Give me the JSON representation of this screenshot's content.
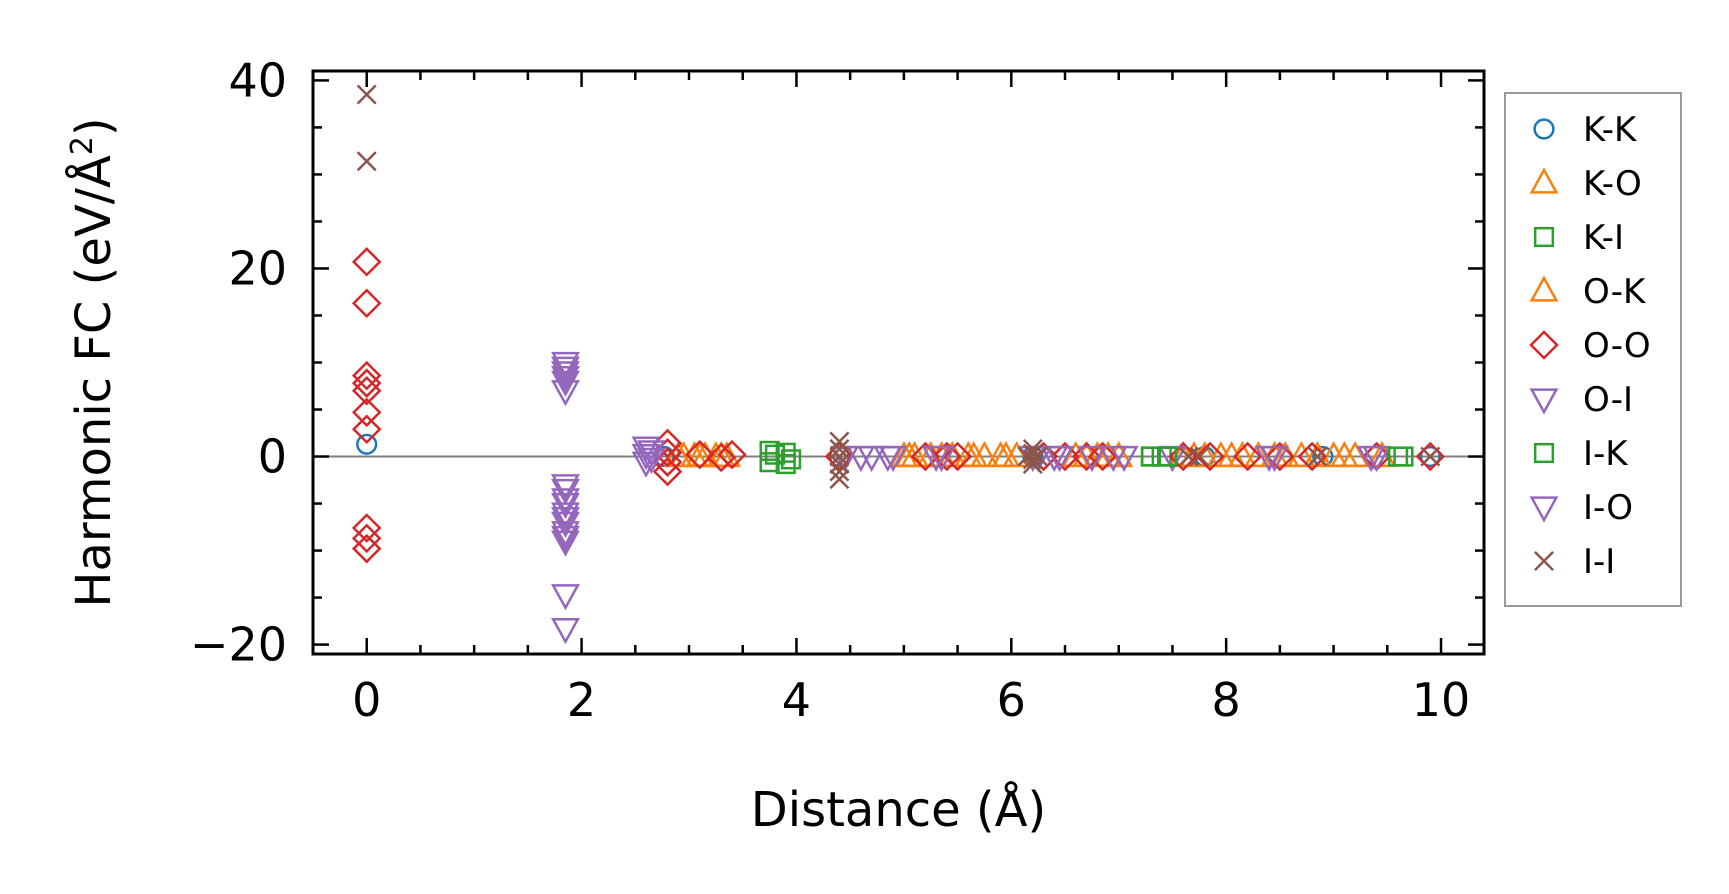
{
  "chart_data": {
    "type": "scatter",
    "title": "",
    "xlabel": "Distance (Å)",
    "ylabel_main": "Harmonic FC (eV/Å",
    "ylabel_sup": "2",
    "ylabel_close": ")",
    "xlim": [
      -0.5,
      10.4
    ],
    "ylim": [
      -21,
      41
    ],
    "xticks": [
      0,
      2,
      4,
      6,
      8,
      10
    ],
    "xtick_labels": [
      "0",
      "2",
      "4",
      "6",
      "8",
      "10"
    ],
    "yticks": [
      -20,
      0,
      20,
      40
    ],
    "ytick_labels": [
      "−20",
      "0",
      "20",
      "40"
    ],
    "zero_line": true,
    "grid": false,
    "legend_position": "outside-right",
    "series": [
      {
        "name": "K-K",
        "marker": "circle",
        "color": "#1f77b4",
        "points": [
          [
            0,
            1.3
          ],
          [
            2.77,
            0
          ],
          [
            4.4,
            0
          ],
          [
            6.2,
            0
          ],
          [
            7.8,
            0
          ],
          [
            8.9,
            0
          ],
          [
            9.9,
            0
          ]
        ]
      },
      {
        "name": "K-O",
        "marker": "triangle-up",
        "color": "#ff7f0e",
        "points": [
          [
            2.95,
            0
          ],
          [
            3.05,
            0
          ],
          [
            3.15,
            0
          ],
          [
            3.25,
            0
          ],
          [
            3.35,
            0
          ],
          [
            5.0,
            0
          ],
          [
            5.1,
            0
          ],
          [
            5.25,
            0
          ],
          [
            5.45,
            0
          ],
          [
            5.6,
            0
          ],
          [
            5.75,
            0
          ],
          [
            5.9,
            0
          ],
          [
            6.05,
            0
          ],
          [
            6.6,
            0
          ],
          [
            6.8,
            0
          ],
          [
            7.0,
            0
          ],
          [
            7.6,
            0
          ],
          [
            7.8,
            0
          ],
          [
            7.95,
            0
          ],
          [
            8.15,
            0
          ],
          [
            8.3,
            0
          ],
          [
            8.55,
            0
          ],
          [
            8.7,
            0
          ],
          [
            8.85,
            0
          ],
          [
            9.0,
            0
          ],
          [
            9.2,
            0
          ],
          [
            9.45,
            0
          ]
        ]
      },
      {
        "name": "K-I",
        "marker": "square",
        "color": "#2ca02c",
        "points": [
          [
            3.75,
            0.6
          ],
          [
            3.75,
            -0.6
          ],
          [
            3.9,
            0.4
          ],
          [
            3.9,
            -0.8
          ],
          [
            7.3,
            0
          ],
          [
            7.4,
            0
          ],
          [
            9.65,
            0
          ]
        ]
      },
      {
        "name": "O-K",
        "marker": "triangle-up",
        "color": "#ff7f0e",
        "points": [
          [
            2.9,
            0
          ],
          [
            3.1,
            0
          ],
          [
            3.3,
            0
          ],
          [
            5.05,
            0
          ],
          [
            5.35,
            0
          ],
          [
            5.65,
            0
          ],
          [
            5.95,
            0
          ],
          [
            6.7,
            0
          ],
          [
            6.9,
            0
          ],
          [
            7.7,
            0
          ],
          [
            8.05,
            0
          ],
          [
            8.45,
            0
          ],
          [
            9.1,
            0
          ]
        ]
      },
      {
        "name": "O-O",
        "marker": "diamond",
        "color": "#d62728",
        "points": [
          [
            0,
            20.7
          ],
          [
            0,
            16.3
          ],
          [
            0,
            8.6
          ],
          [
            0,
            7.8
          ],
          [
            0,
            7.0
          ],
          [
            0,
            4.7
          ],
          [
            0,
            2.9
          ],
          [
            0,
            -7.6
          ],
          [
            0,
            -8.7
          ],
          [
            0,
            -9.8
          ],
          [
            2.8,
            1.4
          ],
          [
            2.8,
            0.4
          ],
          [
            2.8,
            -0.6
          ],
          [
            2.8,
            -1.6
          ],
          [
            3.1,
            0.2
          ],
          [
            3.3,
            -0.1
          ],
          [
            3.4,
            0.2
          ],
          [
            4.4,
            0
          ],
          [
            5.2,
            0
          ],
          [
            5.4,
            0
          ],
          [
            5.5,
            0
          ],
          [
            6.3,
            0
          ],
          [
            6.5,
            0
          ],
          [
            6.7,
            0
          ],
          [
            6.85,
            0
          ],
          [
            7.6,
            0
          ],
          [
            7.85,
            0
          ],
          [
            8.2,
            0
          ],
          [
            8.5,
            0
          ],
          [
            8.8,
            0
          ],
          [
            9.4,
            0
          ],
          [
            9.9,
            0
          ]
        ]
      },
      {
        "name": "O-I",
        "marker": "triangle-down",
        "color": "#9467bd",
        "points": [
          [
            1.85,
            10.0
          ],
          [
            1.85,
            9.0
          ],
          [
            1.85,
            8.0
          ],
          [
            1.85,
            7.0
          ],
          [
            1.85,
            -3.0
          ],
          [
            1.85,
            -4.5
          ],
          [
            1.85,
            -6.0
          ],
          [
            1.85,
            -7.0
          ],
          [
            1.85,
            -8.0
          ],
          [
            1.85,
            -9.0
          ],
          [
            1.85,
            -14.7
          ],
          [
            1.85,
            -18.3
          ],
          [
            2.6,
            1.0
          ],
          [
            2.6,
            0.2
          ],
          [
            2.6,
            -0.6
          ],
          [
            4.6,
            0
          ],
          [
            4.85,
            0
          ],
          [
            5.3,
            0
          ],
          [
            6.2,
            0
          ],
          [
            6.4,
            0
          ],
          [
            6.95,
            0
          ],
          [
            7.5,
            0
          ],
          [
            8.4,
            0
          ],
          [
            9.4,
            0
          ]
        ]
      },
      {
        "name": "I-K",
        "marker": "square",
        "color": "#2ca02c",
        "points": [
          [
            3.8,
            0.2
          ],
          [
            3.95,
            -0.3
          ],
          [
            7.3,
            0
          ],
          [
            7.45,
            0
          ],
          [
            9.6,
            0
          ]
        ]
      },
      {
        "name": "I-O",
        "marker": "triangle-down",
        "color": "#9467bd",
        "points": [
          [
            1.85,
            9.5
          ],
          [
            1.85,
            8.5
          ],
          [
            1.85,
            -3.5
          ],
          [
            1.85,
            -5.0
          ],
          [
            1.85,
            -6.5
          ],
          [
            1.85,
            -8.5
          ],
          [
            2.65,
            0.6
          ],
          [
            2.65,
            -0.2
          ],
          [
            4.45,
            0
          ],
          [
            4.7,
            0
          ],
          [
            4.9,
            0
          ],
          [
            5.35,
            0
          ],
          [
            6.25,
            0
          ],
          [
            6.45,
            0
          ],
          [
            6.75,
            0
          ],
          [
            7.05,
            0
          ],
          [
            8.45,
            0
          ],
          [
            9.35,
            0
          ]
        ]
      },
      {
        "name": "I-I",
        "marker": "x",
        "color": "#8c564b",
        "points": [
          [
            0,
            38.5
          ],
          [
            0,
            31.4
          ],
          [
            4.4,
            1.6
          ],
          [
            4.4,
            0.8
          ],
          [
            4.4,
            0
          ],
          [
            4.4,
            -0.8
          ],
          [
            4.4,
            -1.6
          ],
          [
            4.4,
            -2.4
          ],
          [
            6.2,
            0.8
          ],
          [
            6.2,
            0.3
          ],
          [
            6.2,
            -0.3
          ],
          [
            6.2,
            -0.8
          ],
          [
            6.15,
            0
          ],
          [
            6.25,
            0
          ],
          [
            7.65,
            0
          ],
          [
            7.75,
            0
          ],
          [
            8.85,
            0
          ],
          [
            9.9,
            0
          ]
        ]
      }
    ]
  }
}
